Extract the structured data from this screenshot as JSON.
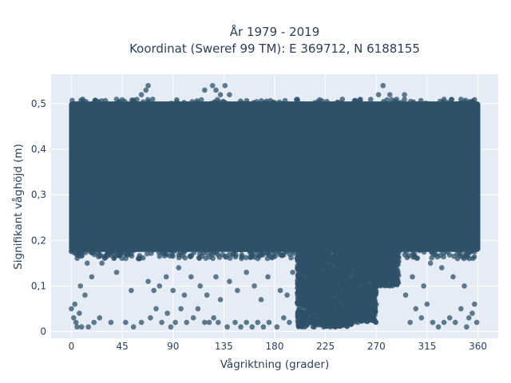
{
  "chart_data": {
    "type": "scatter",
    "title": "År 1979 - 2019",
    "subtitle": "Koordinat (Sweref 99 TM): E 369712, N 6188155",
    "xlabel": "Vågriktning (grader)",
    "ylabel": "Signifikant våghöjd (m)",
    "xlim": [
      -18,
      378
    ],
    "ylim": [
      -0.015,
      0.565
    ],
    "xticks": [
      0,
      45,
      90,
      135,
      180,
      225,
      270,
      315,
      360
    ],
    "xtick_labels": [
      "0",
      "45",
      "90",
      "135",
      "180",
      "225",
      "270",
      "315",
      "360"
    ],
    "yticks": [
      0,
      0.1,
      0.2,
      0.3,
      0.4,
      0.5
    ],
    "ytick_labels": [
      "0",
      "0,1",
      "0,2",
      "0,3",
      "0,4",
      "0,5"
    ],
    "grid": true,
    "background": "#e5ecf6",
    "marker_color": "#2e5169",
    "series": [
      {
        "dense_band": {
          "x": [
            0,
            360
          ],
          "y": [
            0.18,
            0.5
          ]
        },
        "dense_low_region": [
          {
            "x": [
              200,
              225
            ],
            "y": [
              0.01,
              0.18
            ]
          },
          {
            "x": [
              225,
              250
            ],
            "y": [
              0.01,
              0.18
            ]
          },
          {
            "x": [
              250,
              270
            ],
            "y": [
              0.02,
              0.18
            ]
          },
          {
            "x": [
              270,
              290
            ],
            "y": [
              0.1,
              0.18
            ]
          }
        ],
        "points": [
          [
            0,
            0.05
          ],
          [
            2,
            0.03
          ],
          [
            3,
            0.06
          ],
          [
            5,
            0.01
          ],
          [
            4,
            0.02
          ],
          [
            7,
            0.04
          ],
          [
            9,
            0.01
          ],
          [
            12,
            0.08
          ],
          [
            15,
            0.01
          ],
          [
            20,
            0.02
          ],
          [
            25,
            0.03
          ],
          [
            35,
            0.02
          ],
          [
            48,
            0.02
          ],
          [
            55,
            0.01
          ],
          [
            62,
            0.02
          ],
          [
            70,
            0.03
          ],
          [
            75,
            0.05
          ],
          [
            80,
            0.02
          ],
          [
            85,
            0.04
          ],
          [
            88,
            0.01
          ],
          [
            92,
            0.02
          ],
          [
            97,
            0.05
          ],
          [
            102,
            0.02
          ],
          [
            108,
            0.03
          ],
          [
            112,
            0.05
          ],
          [
            118,
            0.02
          ],
          [
            122,
            0.02
          ],
          [
            126,
            0.03
          ],
          [
            130,
            0.02
          ],
          [
            138,
            0.01
          ],
          [
            145,
            0.02
          ],
          [
            150,
            0.01
          ],
          [
            155,
            0.02
          ],
          [
            160,
            0.01
          ],
          [
            165,
            0.02
          ],
          [
            170,
            0.01
          ],
          [
            175,
            0.02
          ],
          [
            182,
            0.01
          ],
          [
            188,
            0.03
          ],
          [
            193,
            0.02
          ],
          [
            8,
            0.1
          ],
          [
            14,
            0.15
          ],
          [
            18,
            0.12
          ],
          [
            27,
            0.15
          ],
          [
            40,
            0.13
          ],
          [
            53,
            0.09
          ],
          [
            60,
            0.16
          ],
          [
            68,
            0.11
          ],
          [
            73,
            0.09
          ],
          [
            78,
            0.1
          ],
          [
            84,
            0.12
          ],
          [
            90,
            0.09
          ],
          [
            95,
            0.14
          ],
          [
            100,
            0.08
          ],
          [
            106,
            0.12
          ],
          [
            114,
            0.1
          ],
          [
            120,
            0.08
          ],
          [
            128,
            0.12
          ],
          [
            132,
            0.07
          ],
          [
            140,
            0.11
          ],
          [
            147,
            0.09
          ],
          [
            155,
            0.13
          ],
          [
            162,
            0.1
          ],
          [
            168,
            0.07
          ],
          [
            174,
            0.12
          ],
          [
            185,
            0.09
          ],
          [
            191,
            0.08
          ],
          [
            196,
            0.13
          ],
          [
            300,
            0.02
          ],
          [
            305,
            0.05
          ],
          [
            310,
            0.03
          ],
          [
            315,
            0.06
          ],
          [
            320,
            0.02
          ],
          [
            325,
            0.01
          ],
          [
            330,
            0.02
          ],
          [
            335,
            0.03
          ],
          [
            340,
            0.02
          ],
          [
            345,
            0.05
          ],
          [
            350,
            0.01
          ],
          [
            352,
            0.03
          ],
          [
            355,
            0.04
          ],
          [
            357,
            0.06
          ],
          [
            359,
            0.02
          ],
          [
            296,
            0.08
          ],
          [
            302,
            0.12
          ],
          [
            312,
            0.1
          ],
          [
            318,
            0.15
          ],
          [
            328,
            0.14
          ],
          [
            338,
            0.12
          ],
          [
            348,
            0.1
          ],
          [
            62,
            0.52
          ],
          [
            66,
            0.53
          ],
          [
            68,
            0.54
          ],
          [
            72,
            0.51
          ],
          [
            118,
            0.53
          ],
          [
            125,
            0.54
          ],
          [
            128,
            0.53
          ],
          [
            132,
            0.52
          ],
          [
            136,
            0.54
          ],
          [
            140,
            0.52
          ],
          [
            272,
            0.52
          ],
          [
            276,
            0.54
          ],
          [
            282,
            0.52
          ],
          [
            288,
            0.51
          ],
          [
            295,
            0.52
          ],
          [
            330,
            0.51
          ],
          [
            345,
            0.51
          ],
          [
            10,
            0.51
          ],
          [
            40,
            0.51
          ],
          [
            200,
            0.51
          ],
          [
            240,
            0.51
          ]
        ]
      }
    ]
  }
}
